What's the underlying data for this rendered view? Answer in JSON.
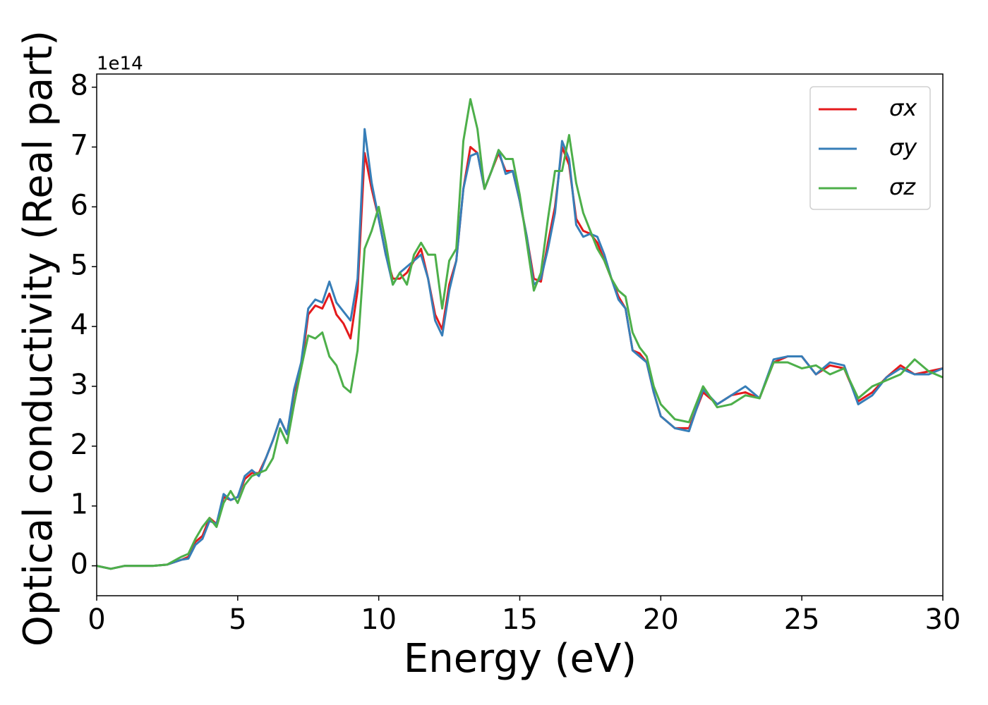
{
  "chart_data": {
    "type": "line",
    "xlabel": "Energy (eV)",
    "ylabel": "Optical conductivity (Real part)",
    "offset_label": "1e14",
    "x": [
      0,
      0.5,
      1,
      1.5,
      2,
      2.5,
      3,
      3.25,
      3.5,
      3.75,
      4,
      4.25,
      4.5,
      4.75,
      5,
      5.25,
      5.5,
      5.75,
      6,
      6.25,
      6.5,
      6.75,
      7,
      7.25,
      7.5,
      7.75,
      8,
      8.25,
      8.5,
      8.75,
      9,
      9.25,
      9.5,
      9.75,
      10,
      10.25,
      10.5,
      10.75,
      11,
      11.25,
      11.5,
      11.75,
      12,
      12.25,
      12.5,
      12.75,
      13,
      13.25,
      13.5,
      13.75,
      14,
      14.25,
      14.5,
      14.75,
      15,
      15.25,
      15.5,
      15.75,
      16,
      16.25,
      16.5,
      16.75,
      17,
      17.25,
      17.5,
      17.75,
      18,
      18.25,
      18.5,
      18.75,
      19,
      19.25,
      19.5,
      19.75,
      20,
      20.5,
      21,
      21.5,
      22,
      22.5,
      23,
      23.5,
      24,
      24.5,
      25,
      25.5,
      26,
      26.5,
      27,
      27.5,
      28,
      28.5,
      29,
      29.5,
      30
    ],
    "series": [
      {
        "name": "σx",
        "color": "#e41a1c",
        "values": [
          0,
          -0.05,
          0,
          0,
          0,
          0.02,
          0.1,
          0.15,
          0.4,
          0.5,
          0.8,
          0.7,
          1.15,
          1.1,
          1.15,
          1.45,
          1.55,
          1.55,
          1.8,
          2.1,
          2.45,
          2.2,
          2.9,
          3.3,
          4.2,
          4.35,
          4.3,
          4.55,
          4.2,
          4.05,
          3.8,
          4.6,
          6.9,
          6.3,
          5.8,
          5.2,
          4.8,
          4.8,
          4.9,
          5.1,
          5.3,
          4.8,
          4.2,
          3.95,
          4.7,
          5.1,
          6.3,
          7.0,
          6.9,
          6.3,
          6.6,
          6.9,
          6.6,
          6.6,
          6.1,
          5.5,
          4.8,
          4.75,
          5.4,
          6.0,
          7.0,
          6.7,
          5.8,
          5.6,
          5.55,
          5.4,
          5.1,
          4.8,
          4.5,
          4.3,
          3.6,
          3.55,
          3.4,
          2.9,
          2.5,
          2.3,
          2.3,
          2.9,
          2.7,
          2.85,
          2.9,
          2.8,
          3.4,
          3.5,
          3.5,
          3.2,
          3.35,
          3.3,
          2.75,
          2.9,
          3.15,
          3.35,
          3.2,
          3.25,
          3.3
        ]
      },
      {
        "name": "σy",
        "color": "#377eb8",
        "values": [
          0,
          -0.05,
          0,
          0,
          0,
          0.02,
          0.1,
          0.12,
          0.35,
          0.45,
          0.75,
          0.7,
          1.2,
          1.1,
          1.15,
          1.5,
          1.6,
          1.5,
          1.8,
          2.1,
          2.45,
          2.2,
          2.95,
          3.4,
          4.3,
          4.45,
          4.4,
          4.75,
          4.4,
          4.25,
          4.1,
          4.8,
          7.3,
          6.4,
          5.8,
          5.2,
          4.7,
          4.9,
          5.0,
          5.1,
          5.2,
          4.8,
          4.1,
          3.85,
          4.6,
          5.1,
          6.3,
          6.85,
          6.9,
          6.3,
          6.6,
          6.95,
          6.55,
          6.6,
          6.1,
          5.5,
          4.7,
          4.8,
          5.3,
          5.9,
          7.1,
          6.8,
          5.7,
          5.5,
          5.55,
          5.5,
          5.2,
          4.8,
          4.45,
          4.3,
          3.6,
          3.5,
          3.4,
          2.9,
          2.5,
          2.3,
          2.25,
          2.95,
          2.7,
          2.85,
          3.0,
          2.8,
          3.45,
          3.5,
          3.5,
          3.2,
          3.4,
          3.35,
          2.7,
          2.85,
          3.15,
          3.3,
          3.2,
          3.2,
          3.3
        ]
      },
      {
        "name": "σz",
        "color": "#4daf4a",
        "values": [
          0,
          -0.05,
          0,
          0,
          0,
          0.02,
          0.15,
          0.2,
          0.45,
          0.65,
          0.8,
          0.65,
          1.05,
          1.25,
          1.05,
          1.35,
          1.5,
          1.55,
          1.6,
          1.8,
          2.3,
          2.05,
          2.7,
          3.3,
          3.85,
          3.8,
          3.9,
          3.5,
          3.35,
          3.0,
          2.9,
          3.6,
          5.3,
          5.6,
          6.0,
          5.4,
          4.7,
          4.9,
          4.7,
          5.2,
          5.4,
          5.2,
          5.2,
          4.3,
          5.1,
          5.3,
          7.1,
          7.8,
          7.3,
          6.3,
          6.6,
          6.95,
          6.8,
          6.8,
          6.2,
          5.4,
          4.6,
          4.9,
          5.8,
          6.6,
          6.6,
          7.2,
          6.4,
          5.9,
          5.6,
          5.3,
          5.1,
          4.8,
          4.6,
          4.5,
          3.9,
          3.65,
          3.5,
          3.0,
          2.7,
          2.45,
          2.4,
          3.0,
          2.65,
          2.7,
          2.85,
          2.8,
          3.4,
          3.4,
          3.3,
          3.35,
          3.2,
          3.3,
          2.8,
          3.0,
          3.1,
          3.2,
          3.45,
          3.25,
          3.15
        ]
      }
    ],
    "xlim": [
      0,
      30
    ],
    "xticks": [
      0,
      5,
      10,
      15,
      20,
      25,
      30
    ],
    "ylim": [
      -0.5,
      8.22
    ],
    "yticks": [
      0,
      1,
      2,
      3,
      4,
      5,
      6,
      7,
      8
    ],
    "legend": "upper right"
  }
}
